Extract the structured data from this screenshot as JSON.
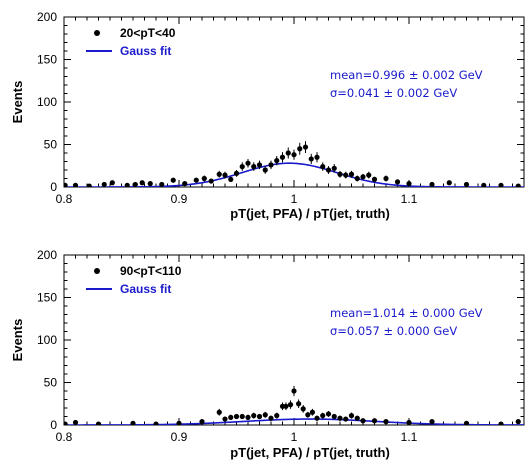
{
  "chart_data": [
    {
      "type": "scatter",
      "xlabel": "pT(jet, PFA) / pT(jet, truth)",
      "ylabel": "Events",
      "xlim": [
        0.8,
        1.2
      ],
      "ylim": [
        0,
        200
      ],
      "x_ticks": [
        "0.8",
        "0.9",
        "1",
        "1.1"
      ],
      "y_ticks": [
        "0",
        "50",
        "100",
        "150",
        "200"
      ],
      "grid": false,
      "legend_position": "top-left",
      "legend": [
        {
          "label": "20<pT<40",
          "marker": "dot",
          "color": "#000000"
        },
        {
          "label": "Gauss fit",
          "marker": "line",
          "color": "#1a1acc"
        }
      ],
      "annotations": [
        "mean=0.996 ± 0.002 GeV",
        "σ=0.041 ± 0.002 GeV"
      ],
      "series": [
        {
          "name": "20<pT<40",
          "x": [
            0.801,
            0.81,
            0.822,
            0.835,
            0.842,
            0.855,
            0.862,
            0.868,
            0.875,
            0.885,
            0.895,
            0.905,
            0.915,
            0.922,
            0.928,
            0.935,
            0.94,
            0.945,
            0.95,
            0.955,
            0.96,
            0.965,
            0.97,
            0.975,
            0.98,
            0.985,
            0.99,
            0.995,
            1.0,
            1.005,
            1.01,
            1.015,
            1.02,
            1.025,
            1.03,
            1.035,
            1.04,
            1.045,
            1.05,
            1.055,
            1.06,
            1.065,
            1.07,
            1.08,
            1.09,
            1.1,
            1.12,
            1.135,
            1.15,
            1.165,
            1.18,
            1.195
          ],
          "y": [
            2,
            2,
            1,
            3,
            5,
            2,
            3,
            5,
            4,
            3,
            8,
            4,
            8,
            10,
            7,
            15,
            14,
            9,
            16,
            24,
            28,
            24,
            26,
            20,
            26,
            31,
            35,
            40,
            38,
            45,
            47,
            33,
            35,
            24,
            20,
            22,
            15,
            14,
            15,
            10,
            12,
            14,
            9,
            10,
            6,
            4,
            3,
            5,
            3,
            2,
            2,
            1
          ],
          "yerr": [
            1.5,
            1.5,
            1,
            2,
            2.5,
            1.5,
            2,
            2.5,
            2,
            2,
            3,
            2,
            3,
            3.5,
            3,
            4,
            4,
            3,
            4,
            5,
            5,
            5,
            5,
            4.5,
            5,
            5.5,
            6,
            6.5,
            6,
            7,
            7,
            6,
            6,
            5,
            4.5,
            5,
            4,
            4,
            4,
            3.5,
            3.5,
            4,
            3,
            3.5,
            2.5,
            2,
            2,
            2.5,
            2,
            1.5,
            1.5,
            1
          ]
        },
        {
          "name": "Gauss fit",
          "fit": {
            "mean": 0.996,
            "sigma": 0.041,
            "amplitude": 28
          }
        }
      ]
    },
    {
      "type": "scatter",
      "xlabel": "pT(jet, PFA) / pT(jet, truth)",
      "ylabel": "Events",
      "xlim": [
        0.8,
        1.2
      ],
      "ylim": [
        0,
        200
      ],
      "x_ticks": [
        "0.8",
        "0.9",
        "1",
        "1.1"
      ],
      "y_ticks": [
        "0",
        "50",
        "100",
        "150",
        "200"
      ],
      "grid": false,
      "legend_position": "top-left",
      "legend": [
        {
          "label": "90<pT<110",
          "marker": "dot",
          "color": "#000000"
        },
        {
          "label": "Gauss fit",
          "marker": "line",
          "color": "#1a1acc"
        }
      ],
      "annotations": [
        "mean=1.014 ± 0.000 GeV",
        "σ=0.057 ± 0.000 GeV"
      ],
      "series": [
        {
          "name": "90<pT<110",
          "x": [
            0.801,
            0.81,
            0.83,
            0.86,
            0.88,
            0.9,
            0.92,
            0.935,
            0.94,
            0.945,
            0.95,
            0.955,
            0.96,
            0.965,
            0.97,
            0.975,
            0.98,
            0.985,
            0.99,
            0.993,
            0.997,
            1.0,
            1.004,
            1.008,
            1.012,
            1.016,
            1.02,
            1.025,
            1.03,
            1.035,
            1.04,
            1.045,
            1.05,
            1.055,
            1.06,
            1.07,
            1.08,
            1.1,
            1.12,
            1.15,
            1.18,
            1.195
          ],
          "y": [
            1,
            3,
            1,
            2,
            1,
            2,
            4,
            15,
            7,
            9,
            10,
            10,
            9,
            11,
            10,
            12,
            8,
            11,
            22,
            22,
            24,
            40,
            25,
            19,
            12,
            15,
            8,
            11,
            13,
            10,
            8,
            7,
            11,
            8,
            5,
            5,
            4,
            3,
            4,
            2,
            1,
            4
          ],
          "yerr": [
            1,
            1.5,
            1,
            1.5,
            1,
            1.5,
            2,
            4,
            3,
            3,
            3,
            3,
            3,
            3.5,
            3,
            3.5,
            3,
            3.5,
            4.5,
            4.5,
            5,
            6,
            5,
            4.5,
            3.5,
            4,
            3,
            3.5,
            3.5,
            3,
            3,
            3,
            3.5,
            3,
            2.5,
            2.5,
            2,
            2,
            2,
            1.5,
            1,
            2
          ]
        },
        {
          "name": "Gauss fit",
          "fit": {
            "mean": 1.014,
            "sigma": 0.057,
            "amplitude": 7
          }
        }
      ]
    }
  ]
}
